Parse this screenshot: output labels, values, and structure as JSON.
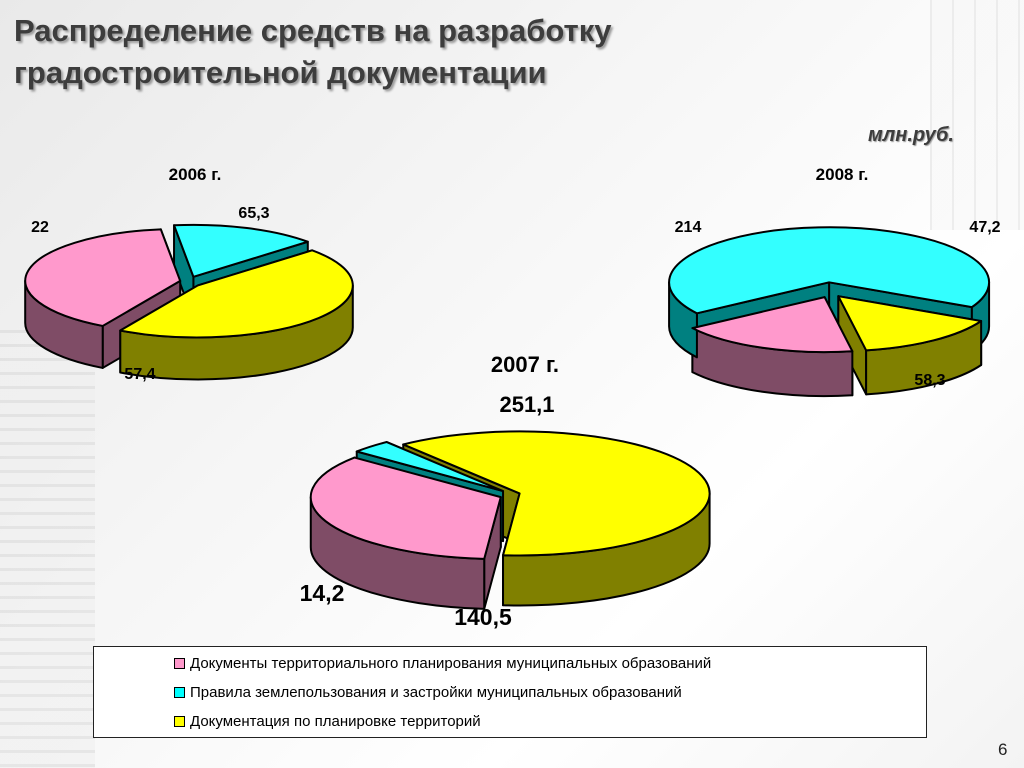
{
  "title": {
    "line1": "Распределение средств на разработку",
    "line2": "градостроительной документации"
  },
  "unit": "млн.руб.",
  "chart_data": [
    {
      "type": "pie",
      "title": "2006 г.",
      "slices": [
        {
          "category": "Документы территориального планирования муниципальных образований",
          "value": 57.4,
          "label": "57,4"
        },
        {
          "category": "Правила землепользования  и застройки муниципальных образований",
          "value": 22,
          "label": "22"
        },
        {
          "category": "Документация по планировке территорий",
          "value": 65.3,
          "label": "65,3"
        }
      ]
    },
    {
      "type": "pie",
      "title": "2007 г.",
      "subtitle": "251,1",
      "slices": [
        {
          "category": "Документы территориального планирования муниципальных образований",
          "value": 140.5,
          "label": "140,5"
        },
        {
          "category": "Правила землепользования  и застройки муниципальных образований",
          "value": 14.2,
          "label": "14,2"
        },
        {
          "category": "Документация по планировке территорий",
          "value": 251.1,
          "label": "251,1"
        }
      ]
    },
    {
      "type": "pie",
      "title": "2008 г.",
      "slices": [
        {
          "category": "Документы территориального планирования муниципальных образований",
          "value": 58.3,
          "label": "58,3"
        },
        {
          "category": "Правила землепользования  и застройки муниципальных образований",
          "value": 214,
          "label": "214"
        },
        {
          "category": "Документация по планировке территорий",
          "value": 47.2,
          "label": "47,2"
        }
      ]
    }
  ],
  "legend": [
    {
      "label": "Документы территориального планирования муниципальных образований",
      "color": "#ff99cc"
    },
    {
      "label": "Правила землепользования  и застройки муниципальных образований",
      "color": "#00ffff"
    },
    {
      "label": "Документация по планировке территорий",
      "color": "#ffff00"
    }
  ],
  "colors": {
    "pink_top": "#ff99cc",
    "pink_side": "#7f4c66",
    "cyan_top": "#33ffff",
    "cyan_side": "#008080",
    "yellow_top": "#ffff00",
    "yellow_side": "#808000"
  },
  "page_number": "6"
}
